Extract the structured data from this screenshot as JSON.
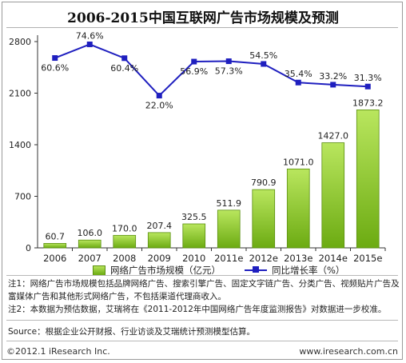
{
  "title": "2006-2015中国互联网广告市场规模及预测",
  "chart_data": {
    "type": "bar",
    "categories": [
      "2006",
      "2007",
      "2008",
      "2009",
      "2010",
      "2011e",
      "2012e",
      "2013e",
      "2014e",
      "2015e"
    ],
    "series": [
      {
        "name": "网络广告市场规模（亿元）",
        "type": "bar",
        "axis": "left",
        "values": [
          60.7,
          106.0,
          170.0,
          207.4,
          325.5,
          511.9,
          790.9,
          1071.0,
          1427.0,
          1873.2
        ],
        "labels": [
          "60.7",
          "106.0",
          "170.0",
          "207.4",
          "325.5",
          "511.9",
          "790.9",
          "1071.0",
          "1427.0",
          "1873.2"
        ]
      },
      {
        "name": "同比增长率（%）",
        "type": "line",
        "axis": "right",
        "values": [
          60.6,
          74.6,
          60.4,
          22.0,
          56.9,
          57.3,
          54.5,
          35.4,
          33.2,
          31.3
        ],
        "labels": [
          "60.6%",
          "74.6%",
          "60.4%",
          "22.0%",
          "56.9%",
          "57.3%",
          "54.5%",
          "35.4%",
          "33.2%",
          "31.3%"
        ]
      }
    ],
    "y_ticks": [
      "0",
      "700",
      "1400",
      "2100",
      "2800"
    ],
    "ylim": [
      0,
      2800
    ],
    "grid": false,
    "legend_position": "bottom",
    "colors": {
      "bar": "#8cc63f",
      "bar_border": "#5a8f10",
      "line": "#1f1fbf"
    }
  },
  "notes": [
    "注1：网络广告市场规模包括品牌网络广告、搜索引擎广告、固定文字链广告、分类广告、视频贴片广告及富媒体广告和其他形式网络广告，不包括渠道代理商收入。",
    "注2：本数据为预估数据，艾瑞将在《2011-2012年中国网络广告年度监测报告》对数据进一步校准。"
  ],
  "source": "Source：根据企业公开财报、行业访谈及艾瑞统计预测模型估算。",
  "footer": {
    "copyright": "©2012.1 iResearch Inc.",
    "website": "www.iresearch.com.cn"
  }
}
